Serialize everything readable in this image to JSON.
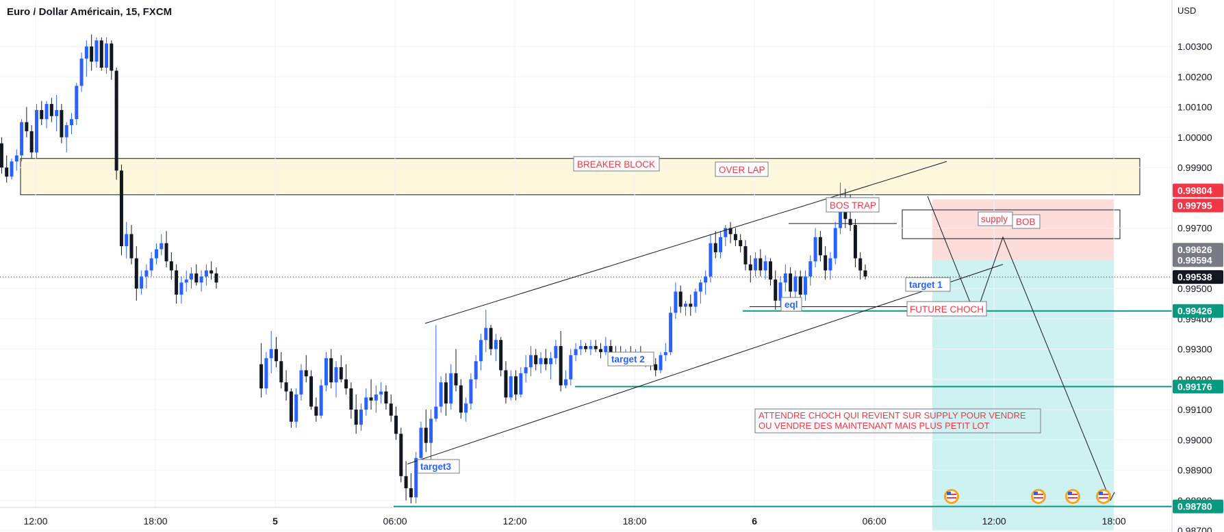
{
  "header": {
    "title": "Euro / Dollar Américain, 15, FXCM",
    "currency": "USD"
  },
  "colors": {
    "up": "#2962ff",
    "down": "#131722",
    "breaker_fill": "#fdf7dc",
    "supply_fill": "#fbd7d2",
    "target_fill": "#c9f0f1",
    "level_line": "#089981",
    "price_red": "#f23645",
    "price_grey": "#787b86",
    "annotation_red": "#f23645",
    "annotation_blue": "#2962ff"
  },
  "annotations": {
    "breaker_block": "BREAKER BLOCK",
    "over_lap": "OVER LAP",
    "bos_trap": "BOS TRAP",
    "supply": "supply",
    "bob": "BOB",
    "future_choch": "FUTURE CHOCH",
    "eql": "eql",
    "target1": "target 1",
    "target2": "target 2",
    "target3": "target3",
    "note_line1": "ATTENDRE CHOCH QUI REVIENT SUR SUPPLY POUR VENDRE",
    "note_line2": "OU VENDRE DES MAINTENANT MAIS PLUS PETIT LOT"
  },
  "events": {
    "icon": "us-flag-icon",
    "count": 4
  },
  "chart_data": {
    "type": "candlestick",
    "symbol": "Euro / Dollar Américain",
    "interval": "15",
    "source": "FXCM",
    "y_axis": {
      "ticks": [
        "1.00300",
        "1.00200",
        "1.00100",
        "1.00000",
        "0.99900",
        "0.99700",
        "0.99500",
        "0.99400",
        "0.99300",
        "0.99200",
        "0.99100",
        "0.99000",
        "0.98900",
        "0.98800",
        "0.98700"
      ],
      "tick_values": [
        1.003,
        1.002,
        1.001,
        1.0,
        0.999,
        0.997,
        0.995,
        0.994,
        0.993,
        0.992,
        0.991,
        0.99,
        0.989,
        0.988,
        0.987
      ],
      "range": [
        0.9865,
        1.0045
      ]
    },
    "x_axis": {
      "ticks": [
        {
          "label": "12:00",
          "h": 12,
          "bold": false
        },
        {
          "label": "18:00",
          "h": 18,
          "bold": false
        },
        {
          "label": "5",
          "h": 24,
          "bold": true
        },
        {
          "label": "06:00",
          "h": 30,
          "bold": false
        },
        {
          "label": "12:00",
          "h": 36,
          "bold": false
        },
        {
          "label": "18:00",
          "h": 42,
          "bold": false
        },
        {
          "label": "6",
          "h": 48,
          "bold": true
        },
        {
          "label": "06:00",
          "h": 54,
          "bold": false
        },
        {
          "label": "12:00",
          "h": 60,
          "bold": false
        },
        {
          "label": "18:00",
          "h": 66,
          "bold": false
        }
      ]
    },
    "price_labels": [
      {
        "text": "0.99804",
        "value": 0.99804,
        "style": "red"
      },
      {
        "text": "0.99795",
        "value": 0.99795,
        "style": "red"
      },
      {
        "text": "0.99626",
        "value": 0.99626,
        "style": "grey"
      },
      {
        "text": "0.99594",
        "value": 0.99594,
        "style": "grey"
      },
      {
        "text": "0.99538",
        "value": 0.99538,
        "style": "black"
      },
      {
        "text": "0.99426",
        "value": 0.99426,
        "style": "green"
      },
      {
        "text": "0.99176",
        "value": 0.99176,
        "style": "green"
      },
      {
        "text": "0.98780",
        "value": 0.9878,
        "style": "green"
      }
    ],
    "levels": {
      "target1": 0.99426,
      "target2": 0.99176,
      "target3": 0.9878,
      "last": 0.99538,
      "breaker_top": 0.9993,
      "breaker_bottom": 0.9981,
      "supply_top": 0.99795,
      "supply_bottom": 0.99594,
      "target_bottom": 0.987
    },
    "candles": [
      [
        1.0011,
        1.0012,
        1.0005,
        1.0006
      ],
      [
        1.0006,
        1.0008,
        0.9999,
        1.0001
      ],
      [
        1.0001,
        1.0003,
        0.9995,
        0.9996
      ],
      [
        0.9996,
        0.9999,
        0.9993,
        0.9998
      ],
      [
        0.9998,
        1.0,
        0.9988,
        0.999
      ],
      [
        0.999,
        0.9994,
        0.9985,
        0.9987
      ],
      [
        0.9987,
        0.9993,
        0.9986,
        0.9992
      ],
      [
        0.9992,
        0.9996,
        0.9989,
        0.9994
      ],
      [
        0.9994,
        1.0006,
        0.9992,
        1.0005
      ],
      [
        1.0005,
        1.001,
        1.0,
        1.0002
      ],
      [
        1.0002,
        1.0004,
        0.9993,
        0.9995
      ],
      [
        0.9995,
        1.0011,
        0.9993,
        1.0009
      ],
      [
        1.0009,
        1.0012,
        1.0004,
        1.0006
      ],
      [
        1.0006,
        1.0012,
        1.0003,
        1.0011
      ],
      [
        1.0011,
        1.0013,
        1.0005,
        1.0007
      ],
      [
        1.0007,
        1.0014,
        1.0002,
        1.0009
      ],
      [
        1.0009,
        1.0011,
        0.9998,
        1.0
      ],
      [
        1.0,
        1.0005,
        0.9995,
        1.0004
      ],
      [
        1.0004,
        1.0008,
        1.0001,
        1.0006
      ],
      [
        1.0006,
        1.0018,
        1.0004,
        1.0017
      ],
      [
        1.0017,
        1.0028,
        1.0015,
        1.0026
      ],
      [
        1.0026,
        1.0032,
        1.002,
        1.003
      ],
      [
        1.003,
        1.0034,
        1.0022,
        1.0025
      ],
      [
        1.0025,
        1.0033,
        1.0023,
        1.0032
      ],
      [
        1.0032,
        1.0033,
        1.0022,
        1.0023
      ],
      [
        1.0023,
        1.0033,
        1.0021,
        1.0031
      ],
      [
        1.0031,
        1.0032,
        1.0019,
        1.0022
      ],
      [
        1.0022,
        1.0023,
        0.9986,
        0.9989
      ],
      [
        0.9989,
        0.9991,
        0.9961,
        0.9964
      ],
      [
        0.9964,
        0.9972,
        0.996,
        0.9968
      ],
      [
        0.9968,
        0.9971,
        0.9958,
        0.996
      ],
      [
        0.996,
        0.9964,
        0.9946,
        0.995
      ],
      [
        0.995,
        0.9956,
        0.9948,
        0.9954
      ],
      [
        0.9954,
        0.9958,
        0.995,
        0.9956
      ],
      [
        0.9956,
        0.9962,
        0.9954,
        0.996
      ],
      [
        0.996,
        0.9965,
        0.9958,
        0.9963
      ],
      [
        0.9963,
        0.9968,
        0.9961,
        0.9965
      ],
      [
        0.9965,
        0.9969,
        0.9957,
        0.9959
      ],
      [
        0.9959,
        0.9962,
        0.9953,
        0.9956
      ],
      [
        0.9956,
        0.9958,
        0.9945,
        0.9948
      ],
      [
        0.9948,
        0.9954,
        0.9945,
        0.9952
      ],
      [
        0.9952,
        0.9956,
        0.9949,
        0.9953
      ],
      [
        0.9953,
        0.9957,
        0.995,
        0.9955
      ],
      [
        0.9955,
        0.9958,
        0.9951,
        0.9952
      ],
      [
        0.9952,
        0.9956,
        0.9949,
        0.9954
      ],
      [
        0.9954,
        0.9958,
        0.9951,
        0.9956
      ],
      [
        0.9956,
        0.9959,
        0.9953,
        0.9955
      ],
      [
        0.9955,
        0.9957,
        0.995,
        0.9952
      ],
      [
        0.9925,
        0.9932,
        0.9914,
        0.9917
      ],
      [
        0.9917,
        0.9929,
        0.9915,
        0.9927
      ],
      [
        0.9927,
        0.9936,
        0.9922,
        0.993
      ],
      [
        0.993,
        0.9934,
        0.9924,
        0.9926
      ],
      [
        0.9926,
        0.9929,
        0.9917,
        0.9919
      ],
      [
        0.9919,
        0.9923,
        0.9913,
        0.9916
      ],
      [
        0.9916,
        0.9917,
        0.9904,
        0.9906
      ],
      [
        0.9906,
        0.9917,
        0.9904,
        0.9915
      ],
      [
        0.9915,
        0.9925,
        0.9913,
        0.9923
      ],
      [
        0.9923,
        0.9928,
        0.9919,
        0.9921
      ],
      [
        0.9921,
        0.9923,
        0.991,
        0.9911
      ],
      [
        0.9911,
        0.9914,
        0.9906,
        0.9908
      ],
      [
        0.9908,
        0.992,
        0.9907,
        0.9918
      ],
      [
        0.9918,
        0.9929,
        0.9916,
        0.9927
      ],
      [
        0.9927,
        0.993,
        0.9917,
        0.9919
      ],
      [
        0.9919,
        0.9926,
        0.9914,
        0.9924
      ],
      [
        0.9924,
        0.9928,
        0.9919,
        0.992
      ],
      [
        0.992,
        0.9925,
        0.9915,
        0.9917
      ],
      [
        0.9917,
        0.9919,
        0.9907,
        0.991
      ],
      [
        0.991,
        0.9915,
        0.9902,
        0.9905
      ],
      [
        0.9905,
        0.9912,
        0.9903,
        0.991
      ],
      [
        0.991,
        0.9917,
        0.9908,
        0.9914
      ],
      [
        0.9914,
        0.992,
        0.991,
        0.9913
      ],
      [
        0.9913,
        0.9918,
        0.9909,
        0.9915
      ],
      [
        0.9915,
        0.9919,
        0.9912,
        0.9916
      ],
      [
        0.9916,
        0.9918,
        0.991,
        0.9912
      ],
      [
        0.9912,
        0.9915,
        0.9906,
        0.9908
      ],
      [
        0.9908,
        0.9911,
        0.99,
        0.9902
      ],
      [
        0.9902,
        0.9904,
        0.9886,
        0.9888
      ],
      [
        0.9888,
        0.9893,
        0.988,
        0.9884
      ],
      [
        0.9884,
        0.9889,
        0.9879,
        0.9881
      ],
      [
        0.9881,
        0.9896,
        0.9879,
        0.9894
      ],
      [
        0.9894,
        0.9906,
        0.9891,
        0.9904
      ],
      [
        0.9904,
        0.991,
        0.9896,
        0.9899
      ],
      [
        0.9899,
        0.991,
        0.9893,
        0.9907
      ],
      [
        0.9907,
        0.9938,
        0.9906,
        0.9911
      ],
      [
        0.9911,
        0.9921,
        0.9909,
        0.9919
      ],
      [
        0.9919,
        0.9922,
        0.9908,
        0.9912
      ],
      [
        0.9912,
        0.9925,
        0.991,
        0.9922
      ],
      [
        0.9922,
        0.993,
        0.9916,
        0.9918
      ],
      [
        0.9918,
        0.992,
        0.9907,
        0.9909
      ],
      [
        0.9909,
        0.9914,
        0.9906,
        0.9912
      ],
      [
        0.9912,
        0.9922,
        0.991,
        0.992
      ],
      [
        0.992,
        0.9928,
        0.9917,
        0.9926
      ],
      [
        0.9926,
        0.9935,
        0.9923,
        0.9933
      ],
      [
        0.9933,
        0.9943,
        0.9929,
        0.9937
      ],
      [
        0.9937,
        0.9938,
        0.9928,
        0.993
      ],
      [
        0.993,
        0.9935,
        0.9926,
        0.9933
      ],
      [
        0.9933,
        0.9934,
        0.9921,
        0.9923
      ],
      [
        0.9923,
        0.9926,
        0.9912,
        0.9914
      ],
      [
        0.9914,
        0.9923,
        0.9913,
        0.9921
      ],
      [
        0.9921,
        0.9923,
        0.9913,
        0.9915
      ],
      [
        0.9915,
        0.9924,
        0.9914,
        0.9922
      ],
      [
        0.9922,
        0.9928,
        0.9919,
        0.9924
      ],
      [
        0.9924,
        0.9931,
        0.9921,
        0.9928
      ],
      [
        0.9928,
        0.993,
        0.9923,
        0.9925
      ],
      [
        0.9925,
        0.9929,
        0.9922,
        0.9927
      ],
      [
        0.9927,
        0.993,
        0.9923,
        0.9925
      ],
      [
        0.9925,
        0.9929,
        0.992,
        0.9927
      ],
      [
        0.9927,
        0.9933,
        0.9925,
        0.9931
      ],
      [
        0.9931,
        0.9936,
        0.9916,
        0.9918
      ],
      [
        0.9918,
        0.9923,
        0.9917,
        0.992
      ],
      [
        0.992,
        0.993,
        0.9918,
        0.9928
      ],
      [
        0.9928,
        0.9932,
        0.9926,
        0.993
      ],
      [
        0.993,
        0.9933,
        0.9928,
        0.9931
      ],
      [
        0.9931,
        0.9932,
        0.9929,
        0.993
      ],
      [
        0.993,
        0.9933,
        0.9928,
        0.9931
      ],
      [
        0.9931,
        0.9933,
        0.9929,
        0.993
      ],
      [
        0.993,
        0.9932,
        0.9927,
        0.9929
      ],
      [
        0.9929,
        0.9934,
        0.9928,
        0.9931
      ],
      [
        0.9931,
        0.9933,
        0.9928,
        0.9929
      ],
      [
        0.9929,
        0.9931,
        0.9926,
        0.9928
      ],
      [
        0.9928,
        0.9931,
        0.9925,
        0.9926
      ],
      [
        0.9926,
        0.993,
        0.9925,
        0.9929
      ],
      [
        0.9929,
        0.9931,
        0.9927,
        0.9928
      ],
      [
        0.9928,
        0.993,
        0.9926,
        0.9929
      ],
      [
        0.9929,
        0.9931,
        0.9925,
        0.9926
      ],
      [
        0.9926,
        0.9929,
        0.9924,
        0.9927
      ],
      [
        0.9927,
        0.9929,
        0.9923,
        0.9925
      ],
      [
        0.9925,
        0.9927,
        0.9921,
        0.9923
      ],
      [
        0.9923,
        0.9929,
        0.9922,
        0.9928
      ],
      [
        0.9928,
        0.9932,
        0.9926,
        0.9929
      ],
      [
        0.9929,
        0.9944,
        0.9928,
        0.9942
      ],
      [
        0.9942,
        0.9952,
        0.994,
        0.9949
      ],
      [
        0.9949,
        0.9951,
        0.9942,
        0.9944
      ],
      [
        0.9944,
        0.9946,
        0.9941,
        0.9945
      ],
      [
        0.9945,
        0.9948,
        0.9941,
        0.9944
      ],
      [
        0.9944,
        0.995,
        0.9942,
        0.9949
      ],
      [
        0.9949,
        0.9953,
        0.9945,
        0.9952
      ],
      [
        0.9952,
        0.9956,
        0.9948,
        0.9954
      ],
      [
        0.9954,
        0.9968,
        0.9952,
        0.9965
      ],
      [
        0.9965,
        0.9969,
        0.996,
        0.9962
      ],
      [
        0.9962,
        0.9969,
        0.996,
        0.9967
      ],
      [
        0.9967,
        0.9971,
        0.9964,
        0.997
      ],
      [
        0.997,
        0.9972,
        0.9965,
        0.9968
      ],
      [
        0.9968,
        0.997,
        0.9964,
        0.9966
      ],
      [
        0.9966,
        0.9968,
        0.9962,
        0.9964
      ],
      [
        0.9964,
        0.9966,
        0.9956,
        0.9958
      ],
      [
        0.9958,
        0.9961,
        0.9952,
        0.9956
      ],
      [
        0.9956,
        0.9962,
        0.9954,
        0.996
      ],
      [
        0.996,
        0.9963,
        0.9954,
        0.9956
      ],
      [
        0.9956,
        0.9961,
        0.9953,
        0.9959
      ],
      [
        0.9959,
        0.996,
        0.9951,
        0.9953
      ],
      [
        0.9953,
        0.9956,
        0.9943,
        0.9946
      ],
      [
        0.9946,
        0.9954,
        0.9944,
        0.9952
      ],
      [
        0.9952,
        0.9958,
        0.9949,
        0.9955
      ],
      [
        0.9955,
        0.9957,
        0.9946,
        0.9949
      ],
      [
        0.9949,
        0.9956,
        0.9947,
        0.9954
      ],
      [
        0.9954,
        0.9956,
        0.9945,
        0.9948
      ],
      [
        0.9948,
        0.9956,
        0.9946,
        0.9954
      ],
      [
        0.9954,
        0.9961,
        0.9951,
        0.9959
      ],
      [
        0.9959,
        0.997,
        0.9957,
        0.9967
      ],
      [
        0.9967,
        0.9969,
        0.9959,
        0.9961
      ],
      [
        0.9961,
        0.9964,
        0.9953,
        0.9956
      ],
      [
        0.9956,
        0.9962,
        0.9953,
        0.996
      ],
      [
        0.996,
        0.9972,
        0.9958,
        0.997
      ],
      [
        0.997,
        0.9985,
        0.9968,
        0.9976
      ],
      [
        0.9976,
        0.9983,
        0.997,
        0.9973
      ],
      [
        0.9973,
        0.9981,
        0.9969,
        0.9971
      ],
      [
        0.9971,
        0.9973,
        0.9957,
        0.996
      ],
      [
        0.996,
        0.9962,
        0.9953,
        0.9956
      ],
      [
        0.9956,
        0.9958,
        0.9953,
        0.9954
      ]
    ],
    "skip_after_index": 47,
    "first_candle_hour": 9.3,
    "candle_step_hours": 0.25
  }
}
